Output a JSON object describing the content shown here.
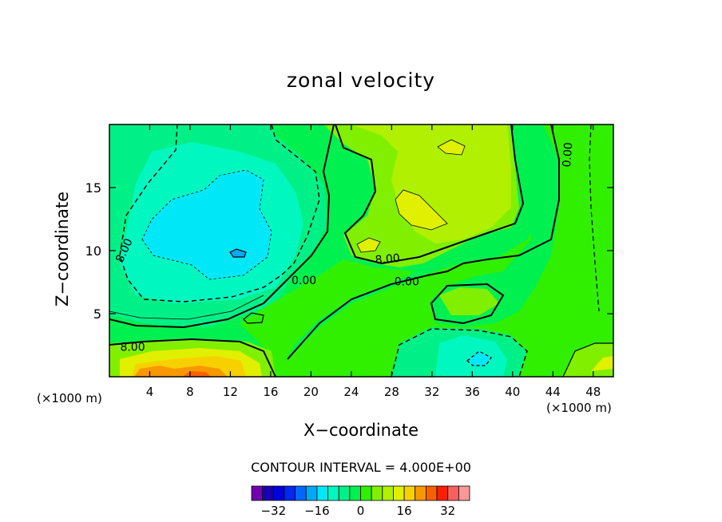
{
  "chart_data": {
    "type": "heatmap",
    "title": "zonal velocity",
    "xlabel": "X−coordinate",
    "ylabel": "Z−coordinate",
    "x_unit_left": "(×1000 m)",
    "x_unit_right": "(×1000 m)",
    "xlim": [
      0,
      50
    ],
    "ylim": [
      0,
      20
    ],
    "x_ticks": [
      4,
      8,
      12,
      16,
      20,
      24,
      28,
      32,
      36,
      40,
      44,
      48
    ],
    "y_ticks": [
      5,
      10,
      15
    ],
    "contour_interval_text": "CONTOUR INTERVAL = 4.000E+00",
    "contour_labels": [
      {
        "text": "8.00",
        "x": 1.5,
        "z": 10.0,
        "rotate": -65
      },
      {
        "text": "0.00",
        "x": 19.3,
        "z": 7.6,
        "rotate": 0
      },
      {
        "text": "8.00",
        "x": 27.6,
        "z": 9.3,
        "rotate": -5
      },
      {
        "text": "0.00",
        "x": 29.5,
        "z": 7.5,
        "rotate": 0
      },
      {
        "text": "0.00",
        "x": 45.5,
        "z": 17.6,
        "rotate": -85
      },
      {
        "text": "8.00",
        "x": 2.3,
        "z": 2.3,
        "rotate": 0
      }
    ],
    "colorbar": {
      "levels": [
        -36,
        -32,
        -28,
        -24,
        -20,
        -16,
        -12,
        -8,
        -4,
        0,
        4,
        8,
        12,
        16,
        20,
        24,
        28,
        32,
        36
      ],
      "colors": [
        "#7000b0",
        "#1a00b0",
        "#0000d8",
        "#0028f0",
        "#0068f8",
        "#00a8f8",
        "#00e8f8",
        "#00f8c0",
        "#00f088",
        "#00f050",
        "#30f000",
        "#80f000",
        "#b0f000",
        "#e0f000",
        "#f8d000",
        "#f89800",
        "#f86000",
        "#f82000",
        "#f86060",
        "#f89898"
      ],
      "tick_labels": [
        "−32",
        "−16",
        "0",
        "16",
        "32"
      ],
      "tick_values": [
        -32,
        -16,
        0,
        16,
        32
      ]
    }
  }
}
